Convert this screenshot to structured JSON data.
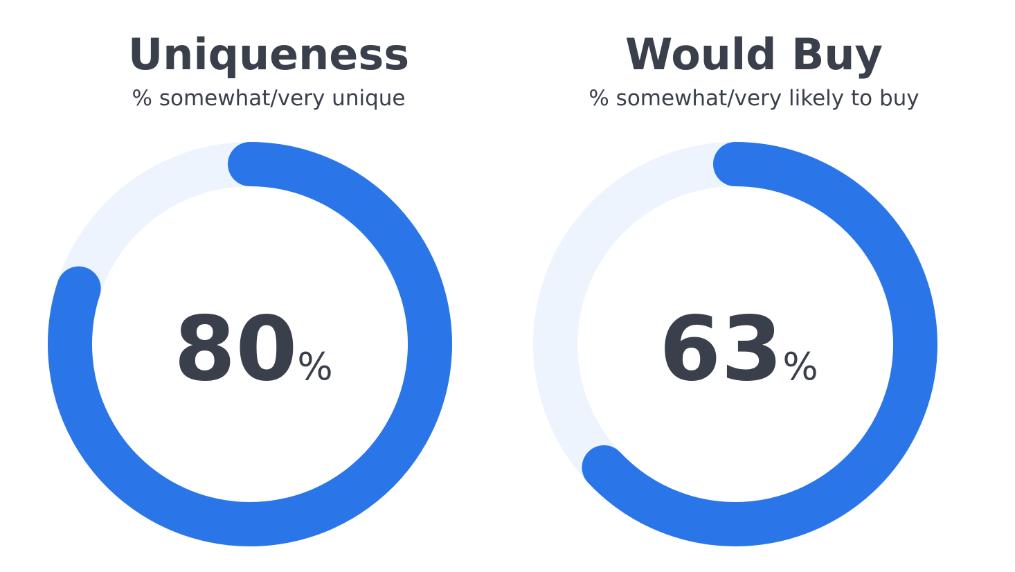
{
  "chart_data": [
    {
      "type": "gauge",
      "title": "Uniqueness",
      "subtitle": "% somewhat/very unique",
      "values": [
        80
      ],
      "unit": "%",
      "ylim": [
        0,
        100
      ],
      "color": "#2a76e8",
      "track_color": "#edf4fe"
    },
    {
      "type": "gauge",
      "title": "Would Buy",
      "subtitle": "% somewhat/very likely to buy",
      "values": [
        63
      ],
      "unit": "%",
      "ylim": [
        0,
        100
      ],
      "color": "#2a76e8",
      "track_color": "#edf4fe"
    }
  ]
}
